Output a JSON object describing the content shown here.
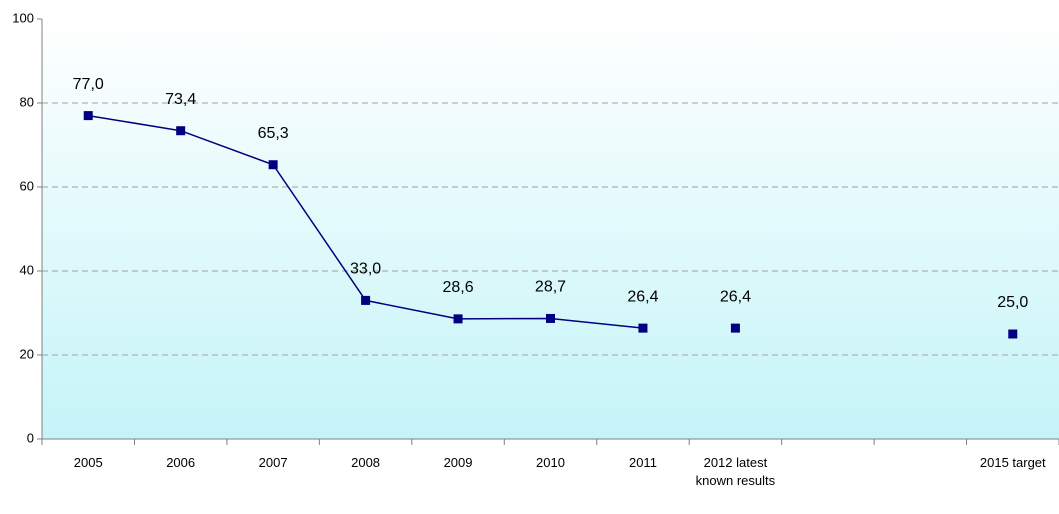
{
  "chart_data": {
    "type": "line",
    "categories": [
      "2005",
      "2006",
      "2007",
      "2008",
      "2009",
      "2010",
      "2011",
      "2012 latest known results",
      null,
      null,
      "2015 target"
    ],
    "series": [
      {
        "color": "#000080",
        "line": true,
        "values": [
          77.0,
          73.4,
          65.3,
          33.0,
          28.6,
          28.7,
          26.4,
          null,
          null,
          null,
          null
        ],
        "value_labels": [
          "77,0",
          "73,4",
          "65,3",
          "33,0",
          "28,6",
          "28,7",
          "26,4",
          null,
          null,
          null,
          null
        ]
      },
      {
        "color": "#000080",
        "line": false,
        "values": [
          null,
          null,
          null,
          null,
          null,
          null,
          null,
          26.4,
          null,
          null,
          25.0
        ],
        "value_labels": [
          null,
          null,
          null,
          null,
          null,
          null,
          null,
          "26,4",
          null,
          null,
          "25,0"
        ]
      }
    ],
    "ylim": [
      0,
      100
    ],
    "yticks": [
      0,
      20,
      40,
      60,
      80,
      100
    ],
    "grid": true
  }
}
